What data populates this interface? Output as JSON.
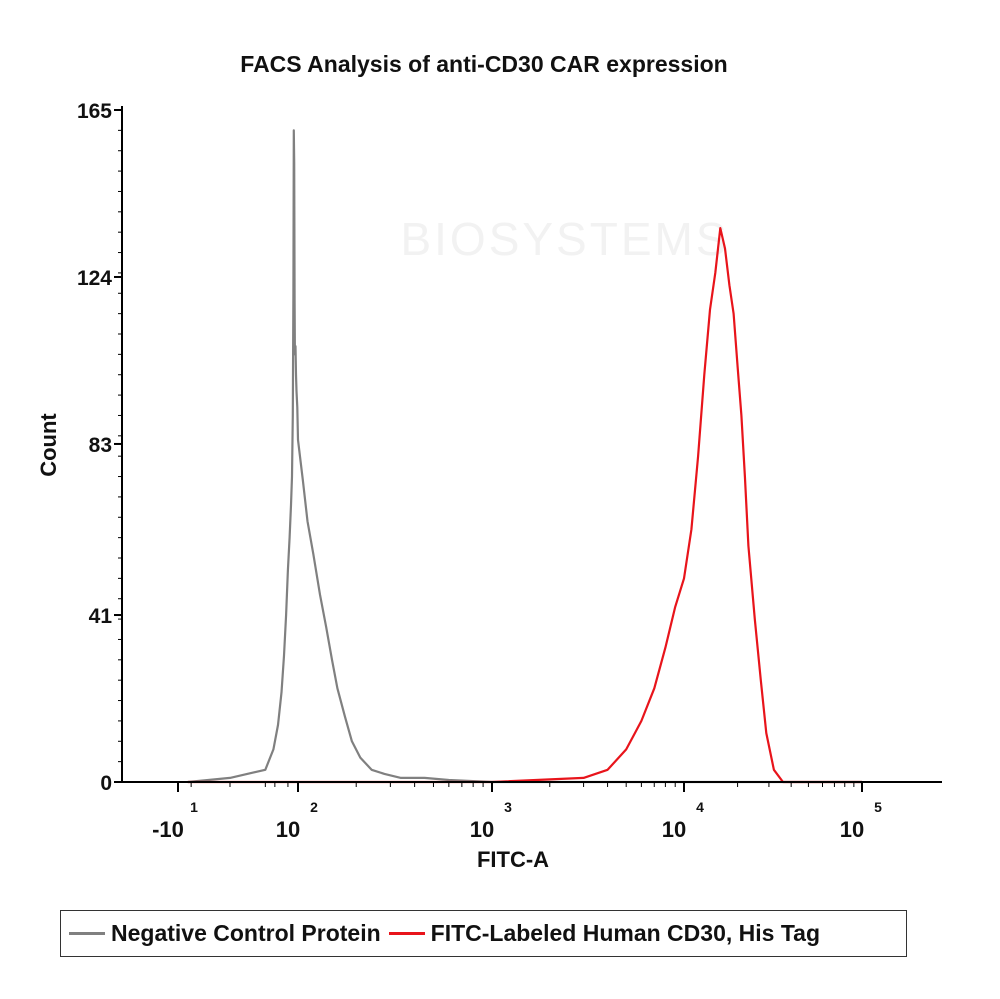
{
  "chart_data": {
    "type": "line",
    "title": "FACS Analysis of anti-CD30 CAR expression",
    "xlabel": "FITC-A",
    "ylabel": "Count",
    "x_scale": "biexponential",
    "ylim": [
      0,
      165
    ],
    "y_ticks": [
      0,
      41,
      83,
      124,
      165
    ],
    "x_ticks": [
      {
        "value": -10,
        "base": "-10",
        "exp": "1"
      },
      {
        "value": 100,
        "base": "10",
        "exp": "2"
      },
      {
        "value": 1000,
        "base": "10",
        "exp": "3"
      },
      {
        "value": 10000,
        "base": "10",
        "exp": "4"
      },
      {
        "value": 100000,
        "base": "10",
        "exp": "5"
      }
    ],
    "watermark": "BIOSYSTEMS",
    "series": [
      {
        "name": "Negative Control Protein",
        "color": "#808080",
        "x": [
          -6,
          0,
          10,
          18,
          25,
          32,
          38,
          44,
          50,
          56,
          62,
          66,
          70,
          73,
          75,
          77,
          79,
          81,
          84,
          87,
          90,
          95,
          100,
          106,
          112,
          120,
          130,
          140,
          150,
          160,
          175,
          190,
          210,
          240,
          280,
          340,
          450,
          600,
          1000,
          2500,
          100000
        ],
        "y": [
          0,
          1,
          3,
          8,
          14,
          22,
          31,
          41,
          52,
          60,
          68,
          75,
          90,
          120,
          160,
          152,
          118,
          105,
          107,
          100,
          96,
          92,
          84,
          74,
          64,
          56,
          46,
          38,
          30,
          23,
          16,
          10,
          6,
          3,
          2,
          1,
          1,
          0.5,
          0,
          0,
          0
        ]
      },
      {
        "name": "FITC-Labeled Human CD30, His Tag",
        "color": "#e8141b",
        "x": [
          -6,
          1000,
          3000,
          4000,
          5000,
          6000,
          7000,
          8000,
          9000,
          10000,
          11000,
          12000,
          13000,
          14000,
          15000,
          16000,
          17000,
          18000,
          19000,
          20000,
          21000,
          22000,
          23000,
          25000,
          27000,
          29000,
          32000,
          36000,
          100000
        ],
        "y": [
          0,
          0,
          1,
          3,
          8,
          15,
          23,
          33,
          43,
          50,
          62,
          80,
          100,
          116,
          125,
          136,
          131,
          122,
          115,
          102,
          90,
          75,
          58,
          40,
          25,
          12,
          3,
          0,
          0
        ]
      }
    ]
  }
}
